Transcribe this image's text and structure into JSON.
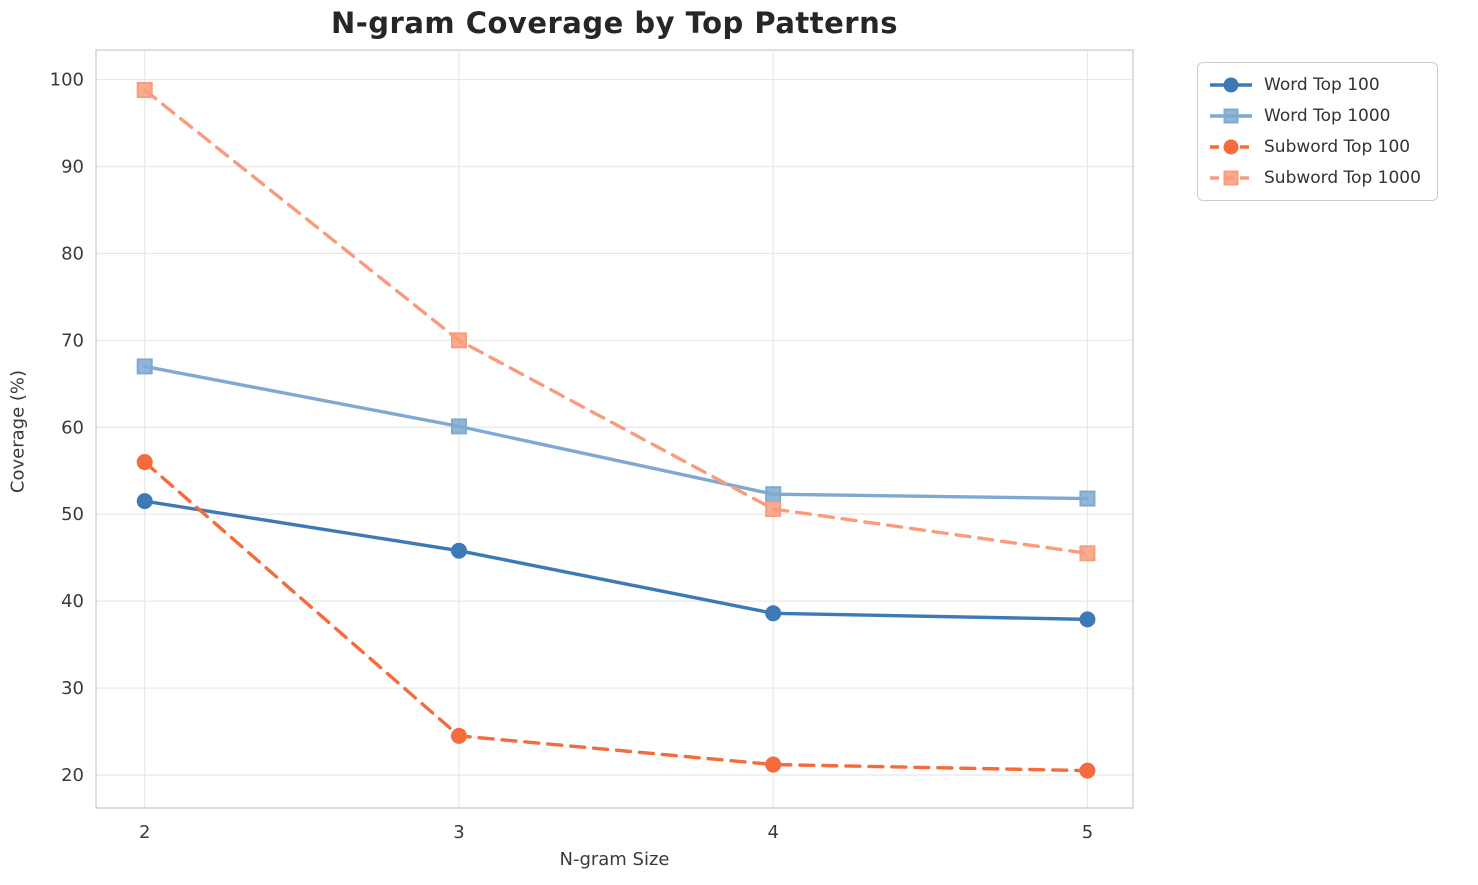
{
  "chart_data": {
    "type": "line",
    "title": "N-gram Coverage by Top Patterns",
    "xlabel": "N-gram Size",
    "ylabel": "Coverage (%)",
    "x": [
      2,
      3,
      4,
      5
    ],
    "xticks": [
      2,
      3,
      4,
      5
    ],
    "yticks": [
      20,
      30,
      40,
      50,
      60,
      70,
      80,
      90,
      100
    ],
    "xlim": [
      1.845,
      5.145
    ],
    "ylim": [
      16.2,
      103.4
    ],
    "grid": true,
    "legend_position": "upper right outside",
    "series": [
      {
        "name": "Word Top 100",
        "values": [
          51.5,
          45.8,
          38.6,
          37.9
        ],
        "color": "#3d7ab5",
        "marker": "circle",
        "dash": "solid"
      },
      {
        "name": "Word Top 1000",
        "values": [
          67.0,
          60.1,
          52.3,
          51.8
        ],
        "color": "#7fa9d0",
        "marker": "square",
        "dash": "solid"
      },
      {
        "name": "Subword Top 100",
        "values": [
          56.0,
          24.5,
          21.2,
          20.5
        ],
        "color": "#f46b3c",
        "marker": "circle",
        "dash": "dashed"
      },
      {
        "name": "Subword Top 1000",
        "values": [
          98.8,
          70.0,
          50.6,
          45.5
        ],
        "color": "#f99c7d",
        "marker": "square",
        "dash": "dashed"
      }
    ],
    "colors": {
      "grid": "#e8e8e8",
      "spine": "#cfcfcf",
      "tick_text": "#3a3a3a",
      "title_text": "#262626"
    }
  }
}
